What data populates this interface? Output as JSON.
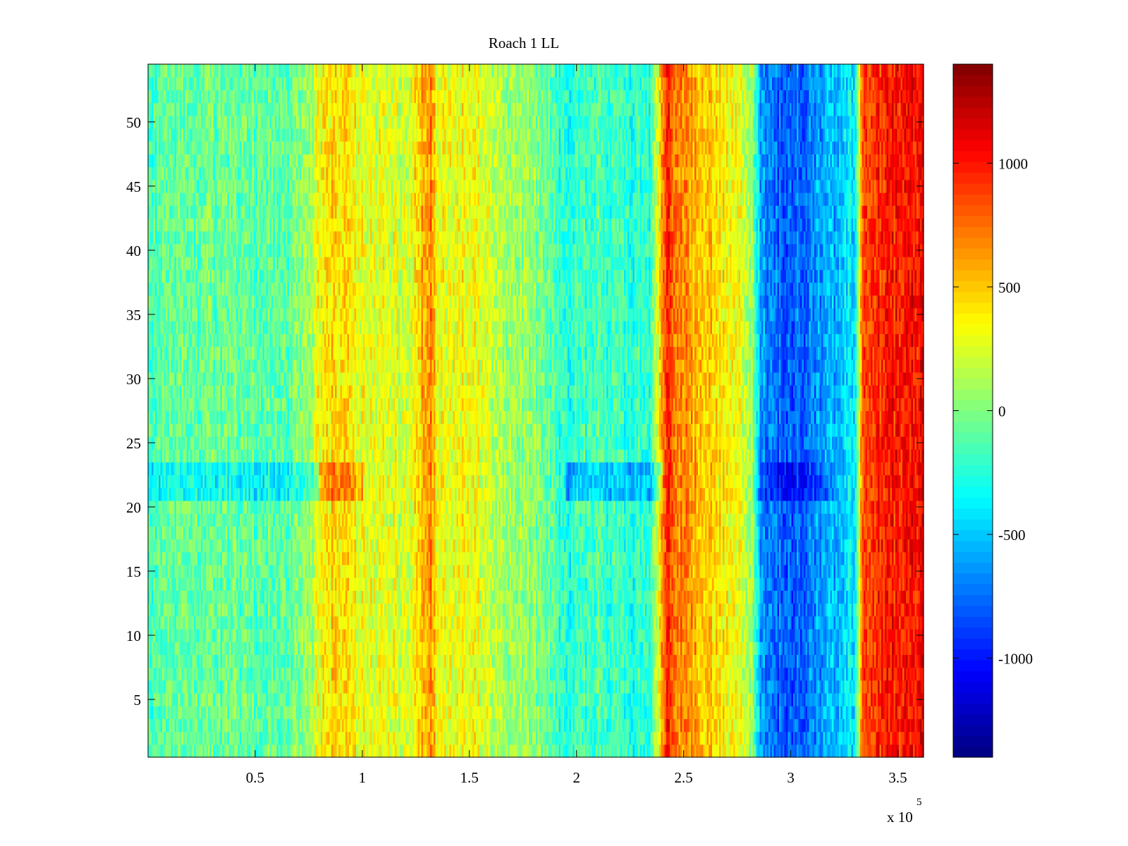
{
  "chart_data": {
    "type": "heatmap",
    "title": "Roach 1 LL",
    "xlabel": "",
    "ylabel": "",
    "x_range": [
      0,
      362000
    ],
    "y_range": [
      0.5,
      54.5
    ],
    "x_ticks": [
      50000,
      100000,
      150000,
      200000,
      250000,
      300000,
      350000
    ],
    "x_tick_labels": [
      "0.5",
      "1",
      "1.5",
      "2",
      "2.5",
      "3",
      "3.5"
    ],
    "x_exponent_label": "x 10",
    "x_exponent_power": "5",
    "y_ticks": [
      5,
      10,
      15,
      20,
      25,
      30,
      35,
      40,
      45,
      50
    ],
    "y_tick_labels": [
      "5",
      "10",
      "15",
      "20",
      "25",
      "30",
      "35",
      "40",
      "45",
      "50"
    ],
    "rows": 54,
    "colorbar": {
      "range": [
        -1400,
        1400
      ],
      "ticks": [
        -1000,
        -500,
        0,
        500,
        1000
      ],
      "tick_labels": [
        "-1000",
        "-500",
        "0",
        "500",
        "1000"
      ],
      "colormap": "jet"
    },
    "column_profile": [
      {
        "x": 0,
        "value": -150
      },
      {
        "x": 30000,
        "value": -50
      },
      {
        "x": 60000,
        "value": -100
      },
      {
        "x": 75000,
        "value": 0
      },
      {
        "x": 82000,
        "value": 450
      },
      {
        "x": 90000,
        "value": 400
      },
      {
        "x": 100000,
        "value": 300
      },
      {
        "x": 115000,
        "value": 250
      },
      {
        "x": 122000,
        "value": 200
      },
      {
        "x": 128000,
        "value": 550
      },
      {
        "x": 132000,
        "value": 700
      },
      {
        "x": 135000,
        "value": 350
      },
      {
        "x": 140000,
        "value": 250
      },
      {
        "x": 150000,
        "value": 350
      },
      {
        "x": 160000,
        "value": 200
      },
      {
        "x": 170000,
        "value": 100
      },
      {
        "x": 185000,
        "value": 0
      },
      {
        "x": 195000,
        "value": -250
      },
      {
        "x": 210000,
        "value": -150
      },
      {
        "x": 235000,
        "value": -250
      },
      {
        "x": 242000,
        "value": 1000
      },
      {
        "x": 248000,
        "value": 700
      },
      {
        "x": 258000,
        "value": 550
      },
      {
        "x": 270000,
        "value": 350
      },
      {
        "x": 282000,
        "value": 150
      },
      {
        "x": 286000,
        "value": -650
      },
      {
        "x": 298000,
        "value": -800
      },
      {
        "x": 310000,
        "value": -700
      },
      {
        "x": 320000,
        "value": -550
      },
      {
        "x": 330000,
        "value": -350
      },
      {
        "x": 334000,
        "value": 850
      },
      {
        "x": 345000,
        "value": 1000
      },
      {
        "x": 362000,
        "value": 1050
      }
    ],
    "row_offsets": [
      {
        "row_range": [
          21,
          23
        ],
        "offset": -250,
        "x_range": [
          0,
          80000
        ]
      },
      {
        "row_range": [
          21,
          23
        ],
        "offset": 300,
        "x_range": [
          80000,
          100000
        ]
      },
      {
        "row_range": [
          21,
          23
        ],
        "offset": -300,
        "x_range": [
          195000,
          240000
        ]
      },
      {
        "row_range": [
          21,
          23
        ],
        "offset": -200,
        "x_range": [
          285000,
          320000
        ]
      }
    ]
  }
}
